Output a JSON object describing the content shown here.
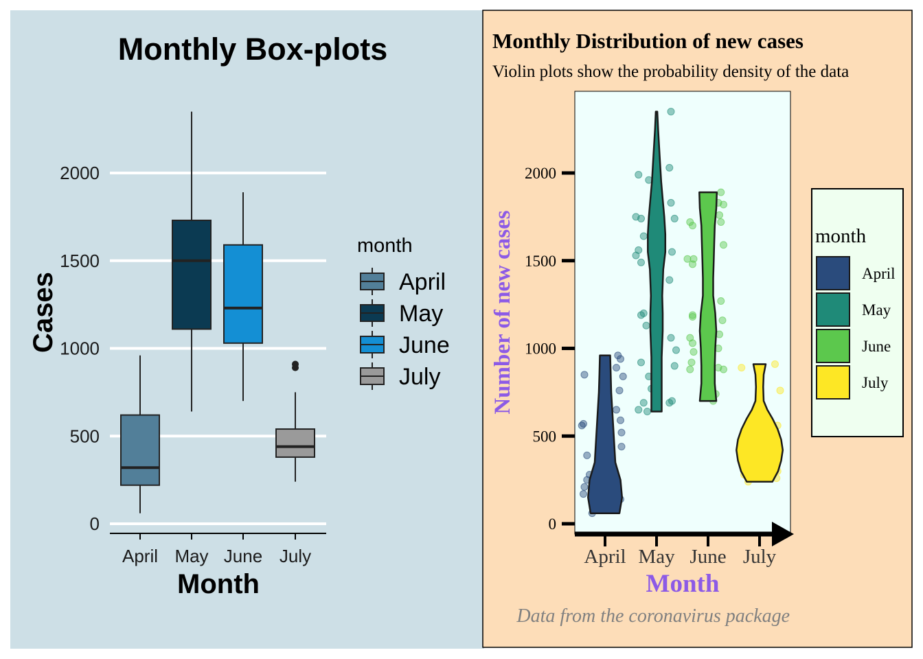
{
  "colors": {
    "left_bg": "#cddfe6",
    "right_bg": "#fdddb8",
    "right_panel": "#effffd",
    "right_legend_bg": "#effff0",
    "right_axis_title": "#8c5ae6",
    "caption": "#808080",
    "box": {
      "April": "#527f99",
      "May": "#0b3a52",
      "June": "#148fd4",
      "July": "#9a9a9a"
    },
    "violin": {
      "April": "#2a4b7c",
      "May": "#1f8a78",
      "June": "#5cc84d",
      "July": "#fde725"
    }
  },
  "chart_data": [
    {
      "type": "box",
      "title": "Monthly Box-plots",
      "xlabel": "Month",
      "ylabel": "Cases",
      "categories": [
        "April",
        "May",
        "June",
        "July"
      ],
      "yticks": [
        "0",
        "500",
        "1000",
        "1500",
        "2000"
      ],
      "ytick_values": [
        0,
        500,
        1000,
        1500,
        2000
      ],
      "ylim": [
        -50,
        2400
      ],
      "grid": true,
      "legend": {
        "title": "month",
        "position": "right",
        "entries": [
          "April",
          "May",
          "June",
          "July"
        ]
      },
      "boxes": [
        {
          "name": "April",
          "min": 60,
          "q1": 220,
          "median": 320,
          "q3": 620,
          "max": 960,
          "outliers": []
        },
        {
          "name": "May",
          "min": 640,
          "q1": 1110,
          "median": 1500,
          "q3": 1730,
          "max": 2350,
          "outliers": []
        },
        {
          "name": "June",
          "min": 700,
          "q1": 1030,
          "median": 1230,
          "q3": 1590,
          "max": 1890,
          "outliers": []
        },
        {
          "name": "July",
          "min": 240,
          "q1": 380,
          "median": 440,
          "q3": 540,
          "max": 750,
          "outliers": [
            890,
            910
          ]
        }
      ]
    },
    {
      "type": "violin",
      "title": "Monthly Distribution of new cases",
      "subtitle": "Violin plots show the probability density of the data",
      "xlabel": "Month",
      "ylabel": "Number of new cases",
      "caption": "Data from the coronavirus package",
      "categories": [
        "April",
        "May",
        "June",
        "July"
      ],
      "yticks": [
        "0",
        "500",
        "1000",
        "1500",
        "2000"
      ],
      "ytick_values": [
        0,
        500,
        1000,
        1500,
        2000
      ],
      "ylim": [
        -50,
        2450
      ],
      "legend": {
        "title": "month",
        "position": "right",
        "entries": [
          "April",
          "May",
          "June",
          "July"
        ]
      },
      "violins": [
        {
          "name": "April",
          "min": 60,
          "max": 960,
          "profile": [
            [
              60,
              0.28
            ],
            [
              150,
              0.33
            ],
            [
              250,
              0.3
            ],
            [
              350,
              0.2
            ],
            [
              450,
              0.18
            ],
            [
              550,
              0.16
            ],
            [
              650,
              0.14
            ],
            [
              750,
              0.12
            ],
            [
              850,
              0.11
            ],
            [
              960,
              0.1
            ]
          ]
        },
        {
          "name": "May",
          "min": 640,
          "max": 2350,
          "profile": [
            [
              640,
              0.1
            ],
            [
              800,
              0.1
            ],
            [
              950,
              0.1
            ],
            [
              1100,
              0.12
            ],
            [
              1200,
              0.12
            ],
            [
              1300,
              0.11
            ],
            [
              1450,
              0.13
            ],
            [
              1550,
              0.17
            ],
            [
              1650,
              0.17
            ],
            [
              1750,
              0.15
            ],
            [
              1850,
              0.12
            ],
            [
              1950,
              0.09
            ],
            [
              2100,
              0.06
            ],
            [
              2250,
              0.03
            ],
            [
              2350,
              0.015
            ]
          ]
        },
        {
          "name": "June",
          "min": 700,
          "max": 1890,
          "profile": [
            [
              700,
              0.16
            ],
            [
              800,
              0.13
            ],
            [
              900,
              0.13
            ],
            [
              1000,
              0.14
            ],
            [
              1100,
              0.16
            ],
            [
              1200,
              0.14
            ],
            [
              1300,
              0.1
            ],
            [
              1400,
              0.1
            ],
            [
              1500,
              0.11
            ],
            [
              1600,
              0.12
            ],
            [
              1700,
              0.13
            ],
            [
              1800,
              0.16
            ],
            [
              1890,
              0.17
            ]
          ]
        },
        {
          "name": "July",
          "min": 240,
          "max": 910,
          "profile": [
            [
              240,
              0.25
            ],
            [
              300,
              0.36
            ],
            [
              360,
              0.42
            ],
            [
              420,
              0.45
            ],
            [
              480,
              0.42
            ],
            [
              540,
              0.35
            ],
            [
              600,
              0.25
            ],
            [
              650,
              0.15
            ],
            [
              700,
              0.08
            ],
            [
              780,
              0.07
            ],
            [
              850,
              0.08
            ],
            [
              910,
              0.12
            ]
          ]
        }
      ],
      "points": [
        {
          "name": "April",
          "values": [
            [
              -0.4,
              850
            ],
            [
              -0.42,
              570
            ],
            [
              -0.45,
              560
            ],
            [
              -0.35,
              390
            ],
            [
              -0.3,
              280
            ],
            [
              -0.35,
              250
            ],
            [
              -0.4,
              210
            ],
            [
              -0.42,
              170
            ],
            [
              -0.25,
              60
            ],
            [
              0.25,
              960
            ],
            [
              0.3,
              940
            ],
            [
              0.35,
              840
            ],
            [
              0.28,
              760
            ],
            [
              0.22,
              650
            ],
            [
              0.3,
              590
            ],
            [
              0.32,
              520
            ],
            [
              0.32,
              440
            ],
            [
              0.2,
              270
            ],
            [
              0.3,
              140
            ],
            [
              0.22,
              890
            ]
          ]
        },
        {
          "name": "May",
          "values": [
            [
              -0.35,
              1990
            ],
            [
              -0.15,
              1960
            ],
            [
              -0.4,
              1750
            ],
            [
              -0.3,
              1740
            ],
            [
              -0.25,
              1640
            ],
            [
              -0.35,
              1560
            ],
            [
              -0.4,
              1530
            ],
            [
              -0.3,
              1490
            ],
            [
              -0.25,
              1200
            ],
            [
              -0.3,
              1190
            ],
            [
              -0.2,
              1130
            ],
            [
              -0.3,
              920
            ],
            [
              -0.15,
              840
            ],
            [
              -0.1,
              770
            ],
            [
              -0.25,
              690
            ],
            [
              -0.35,
              650
            ],
            [
              0.28,
              2350
            ],
            [
              0.25,
              2030
            ],
            [
              0.28,
              1830
            ],
            [
              0.35,
              1740
            ],
            [
              0.3,
              1550
            ],
            [
              0.25,
              1390
            ],
            [
              0.28,
              1060
            ],
            [
              0.38,
              990
            ],
            [
              0.35,
              900
            ],
            [
              0.3,
              700
            ],
            [
              0.25,
              690
            ],
            [
              -0.18,
              640
            ]
          ]
        },
        {
          "name": "June",
          "values": [
            [
              -0.4,
              1510
            ],
            [
              -0.3,
              1480
            ],
            [
              -0.35,
              1720
            ],
            [
              -0.3,
              1700
            ],
            [
              -0.28,
              1510
            ],
            [
              -0.3,
              1190
            ],
            [
              -0.3,
              1180
            ],
            [
              -0.35,
              1060
            ],
            [
              -0.3,
              1030
            ],
            [
              -0.28,
              980
            ],
            [
              -0.32,
              920
            ],
            [
              -0.35,
              880
            ],
            [
              0.25,
              1890
            ],
            [
              0.2,
              1830
            ],
            [
              0.3,
              1820
            ],
            [
              0.22,
              1760
            ],
            [
              0.25,
              1720
            ],
            [
              0.3,
              1590
            ],
            [
              0.25,
              1270
            ],
            [
              0.28,
              1160
            ],
            [
              0.22,
              1080
            ],
            [
              0.2,
              1000
            ],
            [
              0.2,
              890
            ],
            [
              0.3,
              880
            ],
            [
              0.15,
              740
            ],
            [
              0.1,
              700
            ]
          ]
        },
        {
          "name": "July",
          "values": [
            [
              -0.35,
              890
            ],
            [
              -0.3,
              280
            ],
            [
              -0.22,
              240
            ],
            [
              0.3,
              910
            ],
            [
              0.4,
              760
            ],
            [
              0.35,
              560
            ],
            [
              0.32,
              520
            ],
            [
              0.35,
              300
            ],
            [
              0.33,
              260
            ],
            [
              0.28,
              300
            ],
            [
              0.2,
              570
            ],
            [
              0.22,
              480
            ]
          ]
        }
      ]
    }
  ]
}
